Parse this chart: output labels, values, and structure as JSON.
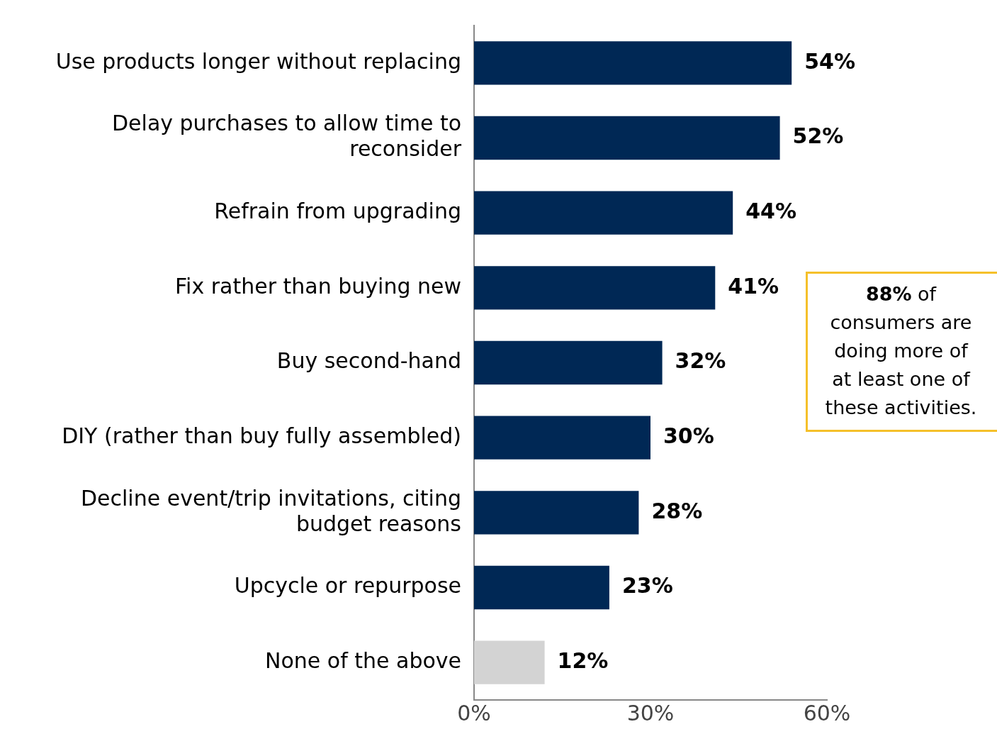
{
  "chart_data": {
    "type": "bar",
    "orientation": "horizontal",
    "categories": [
      "Use products longer without replacing",
      "Delay purchases to allow time to reconsider",
      "Refrain from upgrading",
      "Fix rather than buying new",
      "Buy second-hand",
      "DIY (rather than buy fully assembled)",
      "Decline event/trip invitations, citing budget reasons",
      "Upcycle or repurpose",
      "None of the above"
    ],
    "values": [
      54,
      52,
      44,
      41,
      32,
      30,
      28,
      23,
      12
    ],
    "colors": [
      "#002855",
      "#002855",
      "#002855",
      "#002855",
      "#002855",
      "#002855",
      "#002855",
      "#002855",
      "#d3d3d3"
    ],
    "value_labels": [
      "54%",
      "52%",
      "44%",
      "41%",
      "32%",
      "30%",
      "28%",
      "23%",
      "12%"
    ],
    "xlim": [
      0,
      60
    ],
    "xticks": [
      {
        "value": 0,
        "label": "0%"
      },
      {
        "value": 30,
        "label": "30%"
      },
      {
        "value": 60,
        "label": "60%"
      }
    ],
    "grid": false,
    "legend": false,
    "annotations": [
      "88% of consumers are doing more of at least one of these activities."
    ]
  }
}
